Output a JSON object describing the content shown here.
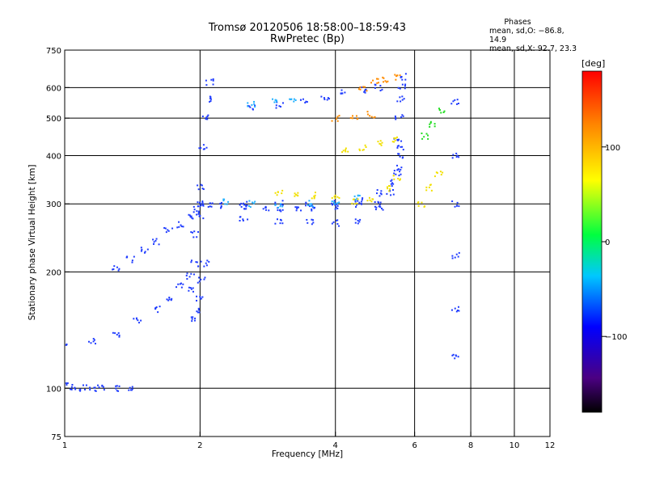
{
  "chart_data": {
    "type": "scatter",
    "title": "Tromsø 20120506 18:58:00–18:59:43",
    "subtitle": "RwPretec (Bp)",
    "xlabel": "Frequency [MHz]",
    "ylabel": "Stationary phase Virtual Height [km]",
    "x_scale": "log",
    "y_scale": "log",
    "xlim": [
      1,
      12
    ],
    "ylim": [
      75,
      750
    ],
    "x_ticks": [
      1,
      2,
      4,
      6,
      8,
      10,
      12
    ],
    "x_tick_labels": [
      "1",
      "2",
      "4",
      "6",
      "8",
      "10",
      "12"
    ],
    "y_ticks": [
      75,
      100,
      200,
      300,
      400,
      500,
      600,
      750
    ],
    "y_tick_labels": [
      "75",
      "100",
      "200",
      "300",
      "400",
      "500",
      "600",
      "750"
    ],
    "grid": true,
    "stats": {
      "heading": "Phases",
      "line1": "mean, sd,O: −86.8, 14.9",
      "line2": "mean, sd,X:  92.7, 23.3"
    },
    "colorbar": {
      "unit": "[deg]",
      "range": [
        -180,
        180
      ],
      "ticks": [
        100,
        0,
        -100
      ],
      "tick_labels": [
        "100",
        "0",
        "−100"
      ],
      "colormap": "rainbow"
    },
    "series": [
      {
        "phase_deg": -100,
        "color": "#1f3cff",
        "segments": [
          {
            "x": [
              1.0,
              1.15,
              1.3,
              1.45,
              1.6,
              1.7,
              1.8,
              1.9,
              1.95
            ],
            "y": [
              130,
              132,
              138,
              150,
              160,
              170,
              185,
              195,
              210
            ]
          },
          {
            "x": [
              1.0,
              1.05,
              1.1,
              1.15,
              1.2,
              1.3,
              1.4
            ],
            "y": [
              102,
              101,
              100,
              100,
              101,
              100,
              99
            ]
          },
          {
            "x": [
              1.3,
              1.4,
              1.5,
              1.6,
              1.7,
              1.8,
              1.9,
              1.95,
              2.0
            ],
            "y": [
              205,
              215,
              228,
              240,
              255,
              265,
              280,
              290,
              300
            ]
          },
          {
            "x": [
              1.9,
              1.95,
              2.0,
              2.03,
              2.05,
              2.08,
              2.1
            ],
            "y": [
              180,
              250,
              330,
              420,
              500,
              560,
              620
            ]
          },
          {
            "x": [
              1.95,
              1.97,
              2.0,
              2.02,
              2.05
            ],
            "y": [
              150,
              160,
              170,
              190,
              210
            ]
          },
          {
            "x": [
              2.0,
              2.2,
              2.5,
              2.8,
              3.0,
              3.3,
              3.6,
              4.0,
              4.5,
              5.0,
              5.3,
              5.5,
              5.6
            ],
            "y": [
              300,
              298,
              295,
              292,
              290,
              290,
              292,
              295,
              305,
              320,
              340,
              370,
              420
            ]
          },
          {
            "x": [
              2.0,
              2.5,
              3.0,
              3.5,
              4.0,
              4.5,
              5.0,
              5.3,
              5.5,
              5.6
            ],
            "y": [
              280,
              275,
              270,
              268,
              268,
              272,
              290,
              320,
              360,
              400
            ]
          },
          {
            "x": [
              2.1,
              2.5,
              3.0,
              3.5,
              4.0,
              4.5,
              5.0
            ],
            "y": [
              300,
              300,
              300,
              300,
              300,
              300,
              300
            ]
          },
          {
            "x": [
              2.6,
              3.0,
              3.4,
              3.8,
              4.2,
              4.6,
              5.0
            ],
            "y": [
              530,
              540,
              555,
              565,
              580,
              590,
              600
            ]
          },
          {
            "x": [
              5.5,
              5.55,
              5.6,
              5.62,
              5.65
            ],
            "y": [
              440,
              500,
              560,
              600,
              640
            ]
          },
          {
            "x": [
              7.4,
              7.4,
              7.4,
              7.4,
              7.4,
              7.4
            ],
            "y": [
              120,
              160,
              220,
              300,
              400,
              550
            ]
          }
        ]
      },
      {
        "phase_deg": -70,
        "color": "#20b0ff",
        "segments": [
          {
            "x": [
              2.3,
              2.6,
              3.0,
              3.5,
              4.0,
              4.5
            ],
            "y": [
              305,
              300,
              298,
              300,
              305,
              310
            ]
          },
          {
            "x": [
              2.6,
              2.9,
              3.2
            ],
            "y": [
              545,
              550,
              560
            ]
          }
        ]
      },
      {
        "phase_deg": 90,
        "color": "#f2e000",
        "segments": [
          {
            "x": [
              3.0,
              3.3,
              3.6,
              4.0,
              4.4,
              4.8,
              5.2,
              5.5
            ],
            "y": [
              320,
              318,
              315,
              310,
              305,
              310,
              330,
              350
            ]
          },
          {
            "x": [
              4.2,
              4.6,
              5.0,
              5.4
            ],
            "y": [
              410,
              420,
              430,
              440
            ]
          },
          {
            "x": [
              6.2,
              6.5,
              6.8
            ],
            "y": [
              300,
              330,
              360
            ]
          }
        ]
      },
      {
        "phase_deg": 130,
        "color": "#ff8c00",
        "segments": [
          {
            "x": [
              4.6,
              4.9,
              5.2,
              5.5
            ],
            "y": [
              600,
              620,
              630,
              640
            ]
          },
          {
            "x": [
              4.0,
              4.4,
              4.8
            ],
            "y": [
              500,
              505,
              510
            ]
          }
        ]
      },
      {
        "phase_deg": 20,
        "color": "#22dd22",
        "segments": [
          {
            "x": [
              6.3,
              6.6,
              6.9
            ],
            "y": [
              450,
              480,
              520
            ]
          }
        ]
      }
    ]
  }
}
